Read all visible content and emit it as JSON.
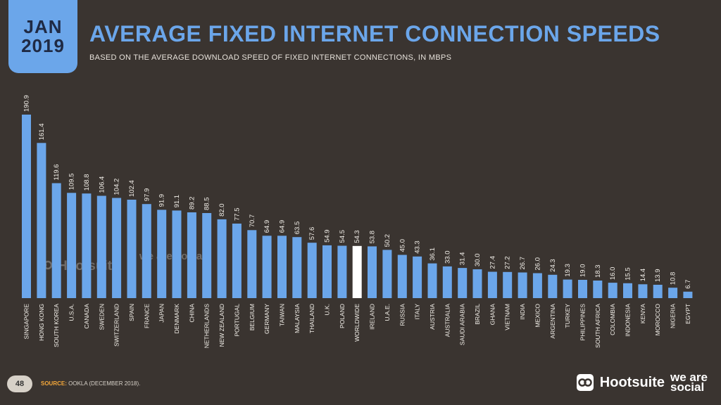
{
  "header": {
    "date_month": "JAN",
    "date_year": "2019",
    "title": "AVERAGE FIXED INTERNET CONNECTION SPEEDS",
    "subtitle": "BASED ON THE AVERAGE DOWNLOAD SPEED OF FIXED INTERNET CONNECTIONS, IN MBPS"
  },
  "footer": {
    "page_number": "48",
    "source_label": "SOURCE:",
    "source_text": "OOKLA (DECEMBER 2018).",
    "brand_hootsuite": "Hootsuite",
    "brand_wearesocial": "we are social"
  },
  "watermark": {
    "hootsuite": "Hootsuite",
    "wearesocial": "we are social"
  },
  "colors": {
    "bar": "#6ba6ea",
    "highlight_bar": "#ffffff",
    "background": "#3a3430",
    "text": "#f2efe9"
  },
  "icons": [
    "owl-logo-icon"
  ],
  "chart_data": {
    "type": "bar",
    "categories": [
      "SINGAPORE",
      "HONG KONG",
      "SOUTH KOREA",
      "U.S.A.",
      "CANADA",
      "SWEDEN",
      "SWITZERLAND",
      "SPAIN",
      "FRANCE",
      "JAPAN",
      "DENMARK",
      "CHINA",
      "NETHERLANDS",
      "NEW ZEALAND",
      "PORTUGAL",
      "BELGIUM",
      "GERMANY",
      "TAIWAN",
      "MALAYSIA",
      "THAILAND",
      "U.K.",
      "POLAND",
      "WORLDWIDE",
      "IRELAND",
      "U.A.E.",
      "RUSSIA",
      "ITALY",
      "AUSTRIA",
      "AUSTRALIA",
      "SAUDI ARABIA",
      "BRAZIL",
      "GHANA",
      "VIETNAM",
      "INDIA",
      "MEXICO",
      "ARGENTINA",
      "TURKEY",
      "PHILIPPINES",
      "SOUTH AFRICA",
      "COLOMBIA",
      "INDONESIA",
      "KENYA",
      "MOROCCO",
      "NIGERIA",
      "EGYPT"
    ],
    "values": [
      190.9,
      161.4,
      119.6,
      109.5,
      108.8,
      106.4,
      104.2,
      102.4,
      97.9,
      91.9,
      91.1,
      89.2,
      88.5,
      82.0,
      77.5,
      70.7,
      64.9,
      64.9,
      63.5,
      57.6,
      54.9,
      54.5,
      54.3,
      53.8,
      50.2,
      45.0,
      43.3,
      36.1,
      33.0,
      31.4,
      30.0,
      27.4,
      27.2,
      26.7,
      26.0,
      24.3,
      19.3,
      19.0,
      18.3,
      16.0,
      15.5,
      14.4,
      13.9,
      10.8,
      6.7
    ],
    "value_labels": [
      "190.9",
      "161.4",
      "119.6",
      "109.5",
      "108.8",
      "106.4",
      "104.2",
      "102.4",
      "97.9",
      "91.9",
      "91.1",
      "89.2",
      "88.5",
      "82.0",
      "77.5",
      "70.7",
      "64.9",
      "64.9",
      "63.5",
      "57.6",
      "54.9",
      "54.5",
      "54.3",
      "53.8",
      "50.2",
      "45.0",
      "43.3",
      "36.1",
      "33.0",
      "31.4",
      "30.0",
      "27.4",
      "27.2",
      "26.7",
      "26.0",
      "24.3",
      "19.3",
      "19.0",
      "18.3",
      "16.0",
      "15.5",
      "14.4",
      "13.9",
      "10.8",
      "6.7"
    ],
    "highlight": "WORLDWIDE",
    "ylim": [
      0,
      190.9
    ],
    "xlabel": "",
    "ylabel": ""
  }
}
